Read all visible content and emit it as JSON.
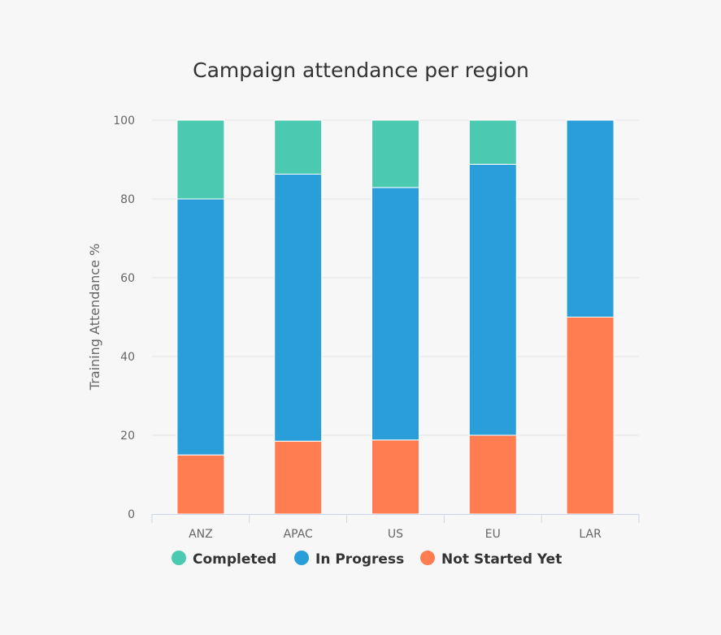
{
  "chart_data": {
    "type": "bar",
    "stacked": true,
    "title": "Campaign attendance per region",
    "xlabel": "",
    "ylabel": "Training Attendance %",
    "categories": [
      "ANZ",
      "APAC",
      "US",
      "EU",
      "LAR"
    ],
    "ylim": [
      0,
      100
    ],
    "yticks": [
      0,
      20,
      40,
      60,
      80,
      100
    ],
    "grid": true,
    "legend_position": "bottom",
    "series": [
      {
        "name": "Not Started Yet",
        "color": "#ff7d50",
        "values": [
          15,
          18.5,
          18.8,
          20,
          50
        ]
      },
      {
        "name": "In Progress",
        "color": "#2a9ed8",
        "values": [
          65,
          67.8,
          64.1,
          68.8,
          50
        ]
      },
      {
        "name": "Completed",
        "color": "#4ccab1",
        "values": [
          20,
          13.7,
          17.1,
          11.2,
          0
        ]
      }
    ],
    "legend_order": [
      "Completed",
      "In Progress",
      "Not Started Yet"
    ]
  }
}
